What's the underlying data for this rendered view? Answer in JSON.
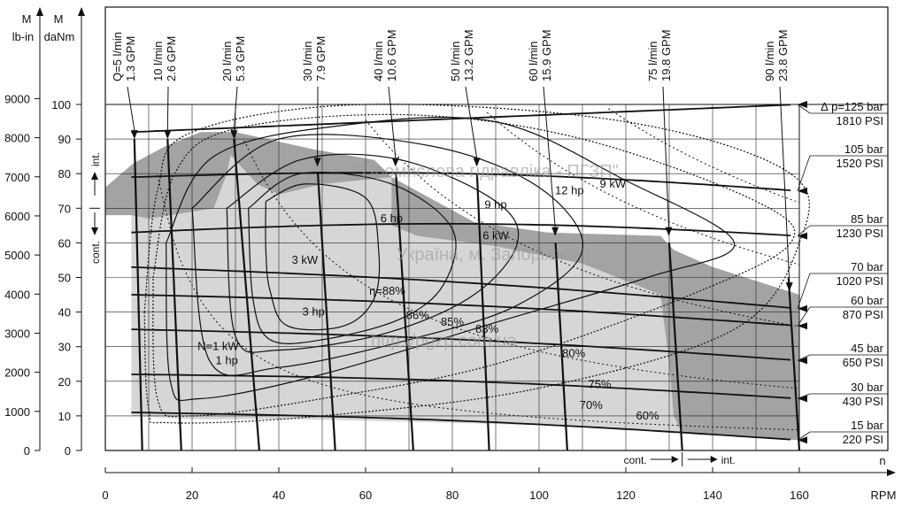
{
  "chart_data": {
    "type": "line",
    "title": "",
    "x_axis": {
      "label": "RPM",
      "extra_label": "n",
      "range": [
        0,
        160
      ],
      "ticks": [
        0,
        20,
        40,
        60,
        80,
        100,
        120,
        140,
        160
      ]
    },
    "y_axis_daNm": {
      "label_line1": "M",
      "label_line2": "daNm",
      "range": [
        0,
        100
      ],
      "ticks": [
        0,
        10,
        20,
        30,
        40,
        50,
        60,
        70,
        80,
        90,
        100
      ]
    },
    "y_axis_lbin": {
      "label_line1": "M",
      "label_line2": "lb-in",
      "range": [
        0,
        9000
      ],
      "ticks": [
        0,
        1000,
        2000,
        3000,
        4000,
        5000,
        6000,
        7000,
        8000,
        9000
      ]
    },
    "zone_labels": {
      "cont_y": "cont.",
      "int_y": "int.",
      "cont_x": "cont.",
      "int_x": "int.",
      "cont_x_limit_rpm": 133,
      "cont_y_limit_daNm": 70
    },
    "pressure_lines": [
      {
        "bar": "∆ p=125 bar",
        "psi": "1810 PSI",
        "daNm_at_0": 92,
        "daNm_at_160": 100
      },
      {
        "bar": "105 bar",
        "psi": "1520 PSI",
        "daNm_at_0": 79,
        "daNm_at_160": 75
      },
      {
        "bar": "85 bar",
        "psi": "1230 PSI",
        "daNm_at_0": 63,
        "daNm_at_160": 62
      },
      {
        "bar": "70 bar",
        "psi": "1020 PSI",
        "daNm_at_0": 53,
        "daNm_at_160": 41
      },
      {
        "bar": "60 bar",
        "psi": "870 PSI",
        "daNm_at_0": 45,
        "daNm_at_160": 36
      },
      {
        "bar": "45 bar",
        "psi": "650 PSI",
        "daNm_at_0": 35,
        "daNm_at_160": 26
      },
      {
        "bar": "30 bar",
        "psi": "430 PSI",
        "daNm_at_0": 22,
        "daNm_at_160": 15
      },
      {
        "bar": "15 bar",
        "psi": "220 PSI",
        "daNm_at_0": 11,
        "daNm_at_160": 3
      }
    ],
    "flow_lines": [
      {
        "label1": "Q=5 l/min",
        "label2": "1.3 GPM",
        "rpm_top": 6.5,
        "rpm_bottom": 8.5
      },
      {
        "label1": "10 l/min",
        "label2": "2.6 GPM",
        "rpm_top": 14,
        "rpm_bottom": 17.5
      },
      {
        "label1": "20 l/min",
        "label2": "5.3 GPM",
        "rpm_top": 29,
        "rpm_bottom": 35.5
      },
      {
        "label1": "30 l/min",
        "label2": "7.9 GPM",
        "rpm_top": 48,
        "rpm_bottom": 53
      },
      {
        "label1": "40 l/min",
        "label2": "10.6 GPM",
        "rpm_top": 66,
        "rpm_bottom": 71
      },
      {
        "label1": "50 l/min",
        "label2": "13.2 GPM",
        "rpm_top": 85,
        "rpm_bottom": 88.5
      },
      {
        "label1": "60 l/min",
        "label2": "15.9 GPM",
        "rpm_top": 102,
        "rpm_bottom": 106.5
      },
      {
        "label1": "75 l/min",
        "label2": "19.8 GPM",
        "rpm_top": 128,
        "rpm_bottom": 133
      },
      {
        "label1": "90 l/min",
        "label2": "23.8 GPM",
        "rpm_top": 155,
        "rpm_bottom": 160
      }
    ],
    "efficiency_labels": [
      "η=88%",
      "86%",
      "85%",
      "83%",
      "80%",
      "75%",
      "70%",
      "60%"
    ],
    "power_labels": [
      "N=1 kW",
      "1 hp",
      "3 kW",
      "3 hp",
      "6 hp",
      "6 kW",
      "9 hp",
      "12 hp",
      "9 kW"
    ],
    "watermarks": [
      "\"Промислова гідравліка - ПГЗП\"",
      "Україна, м. Запоріжжя",
      "http://pgzp.com.ua"
    ],
    "grid": true,
    "legend": "none"
  }
}
